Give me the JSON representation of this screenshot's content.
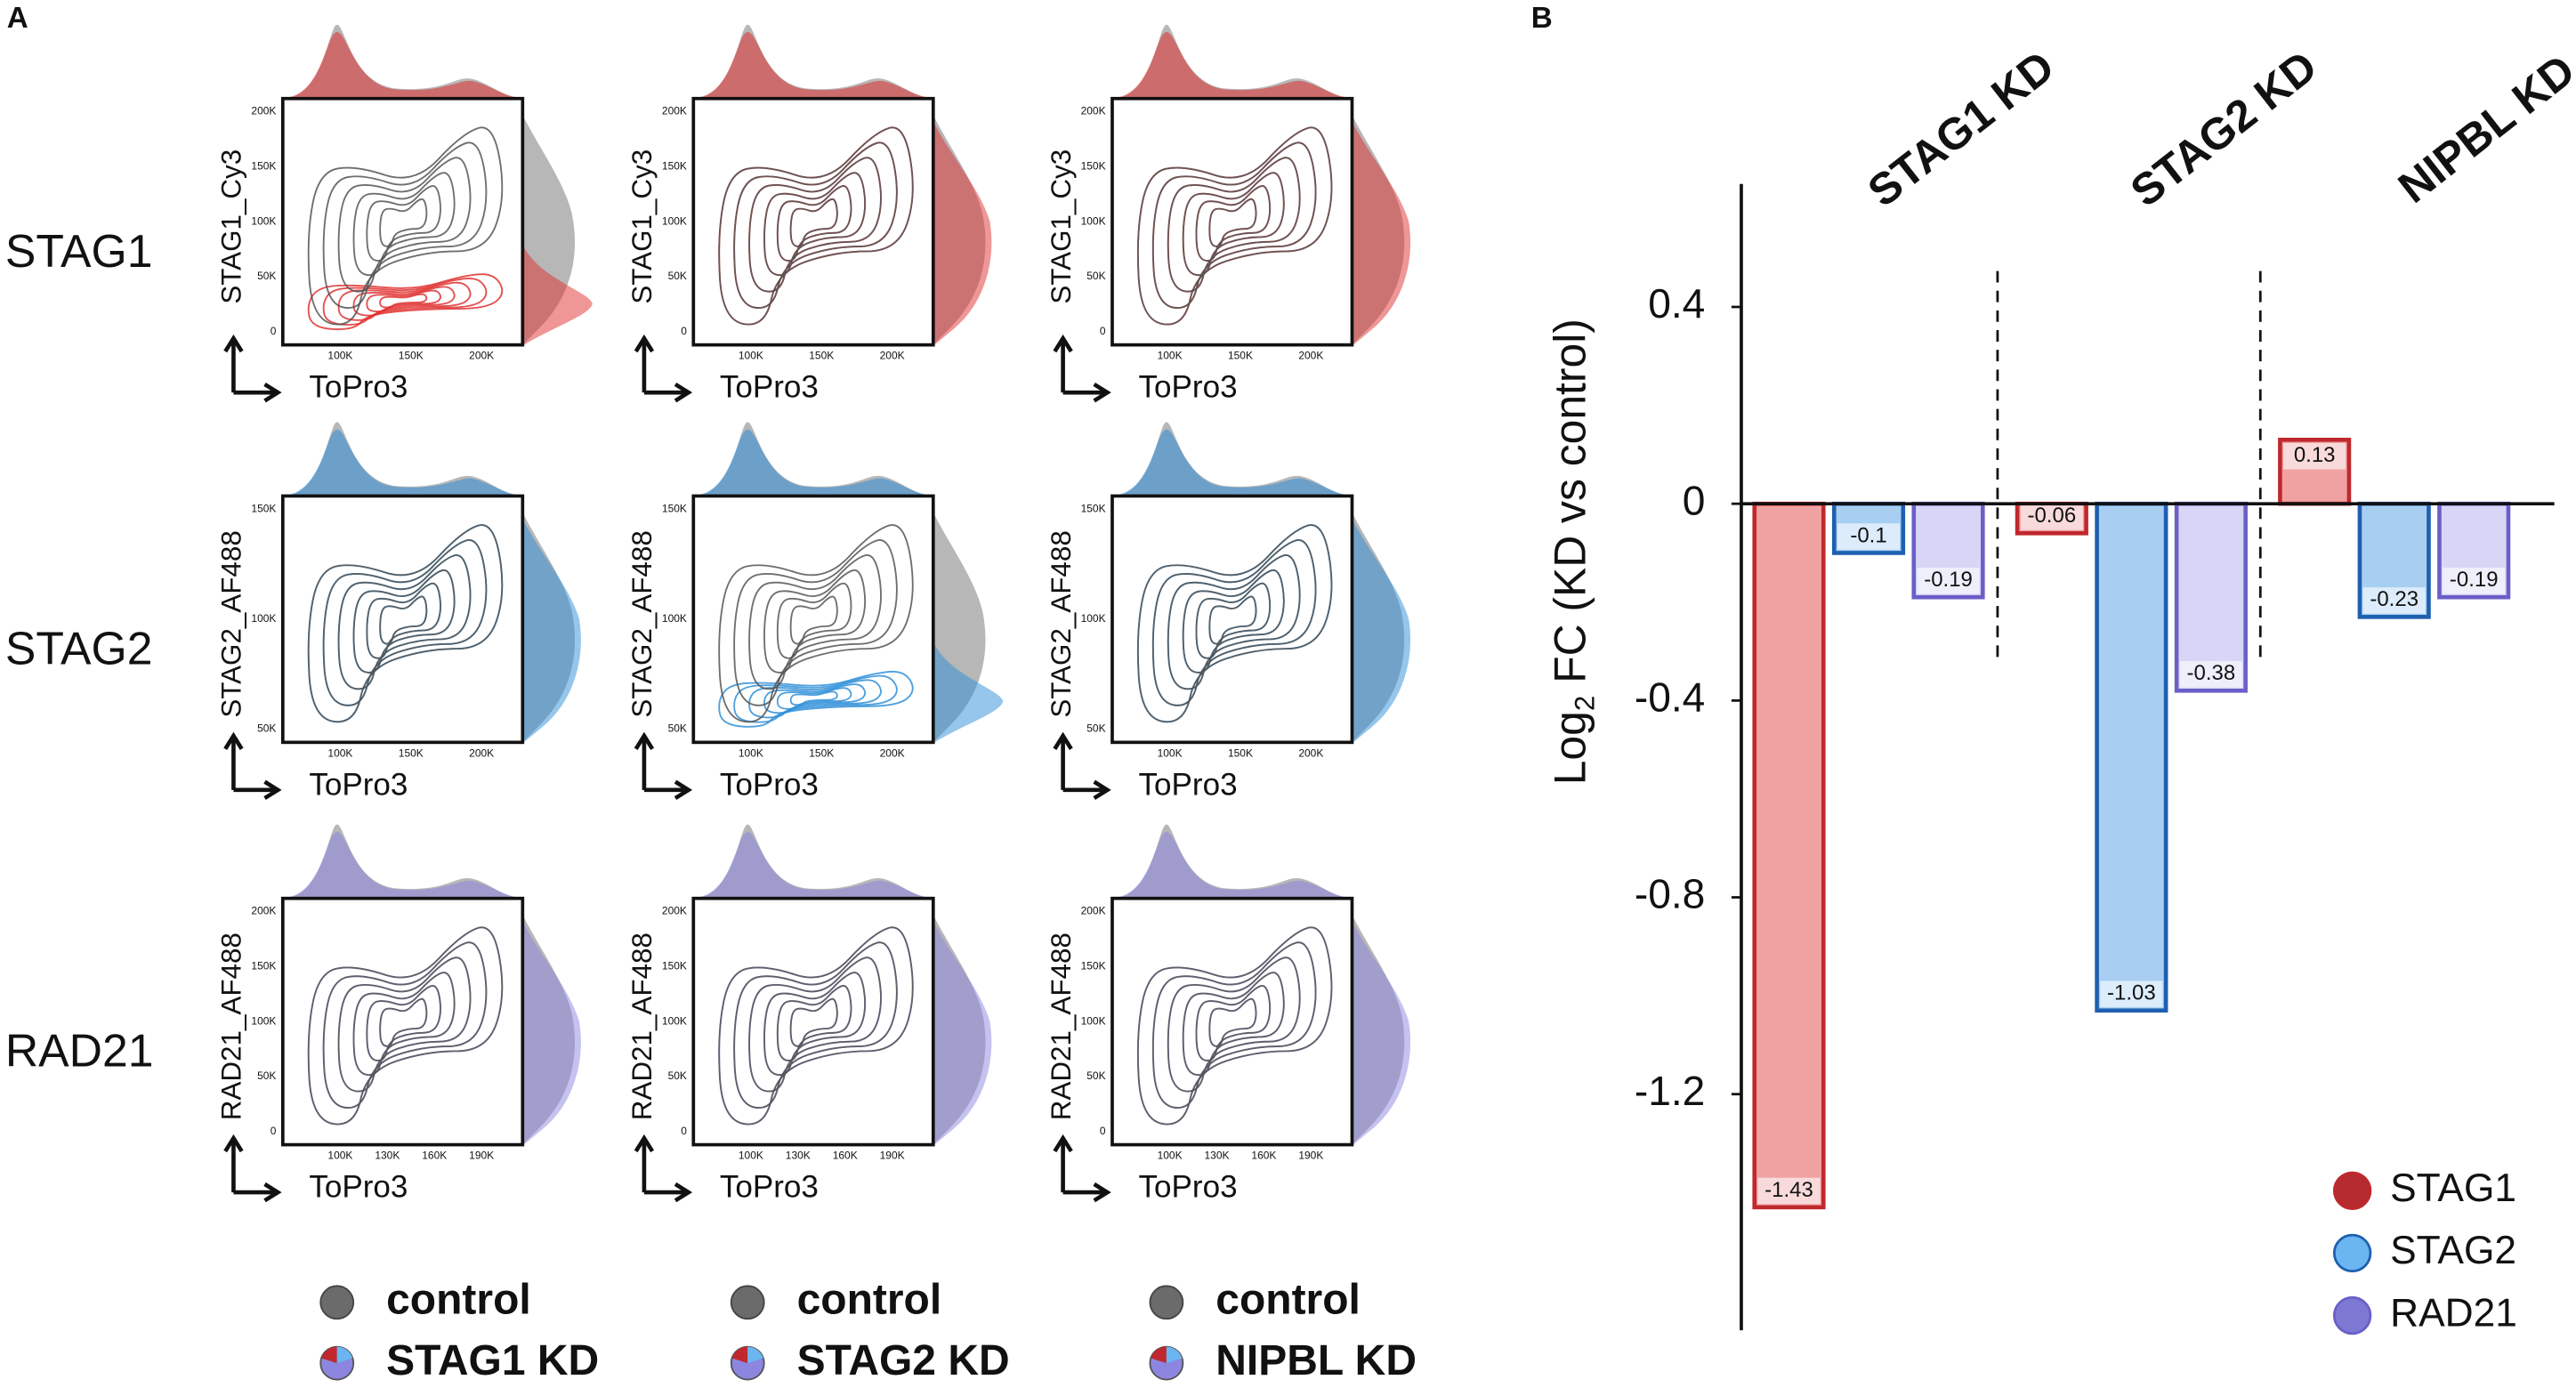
{
  "panel_a": {
    "label": "A",
    "xlabel": "ToPro3",
    "rows": [
      {
        "label": "STAG1",
        "ylabel": "STAG1_Cy3",
        "color": "#e03030",
        "yticks": [
          "0",
          "50K",
          "100K",
          "150K",
          "200K"
        ],
        "xticks": [
          "100K",
          "150K",
          "200K"
        ]
      },
      {
        "label": "STAG2",
        "ylabel": "STAG2_AF488",
        "color": "#2f8fd8",
        "yticks": [
          "50K",
          "100K",
          "150K"
        ],
        "xticks": [
          "100K",
          "150K",
          "200K"
        ]
      },
      {
        "label": "RAD21",
        "ylabel": "RAD21_AF488",
        "color": "#8c86e0",
        "yticks": [
          "0",
          "50K",
          "100K",
          "150K",
          "200K"
        ],
        "xticks": [
          "100K",
          "130K",
          "160K",
          "190K"
        ]
      }
    ],
    "legend": [
      [
        "control",
        "STAG1 KD"
      ],
      [
        "control",
        "STAG2 KD"
      ],
      [
        "control",
        "NIPBL KD"
      ]
    ]
  },
  "chart_data": {
    "type": "bar",
    "panel_label": "B",
    "ylabel_parts": [
      "Log",
      "2",
      " FC (KD vs control)"
    ],
    "categories": [
      "STAG1 KD",
      "STAG2 KD",
      "NIPBL KD"
    ],
    "series": [
      {
        "name": "STAG1",
        "color": "#c0282d",
        "fill": "#f0a2a2",
        "marker_color": "#b52a2e",
        "values": [
          -1.43,
          -0.06,
          0.13
        ]
      },
      {
        "name": "STAG2",
        "color": "#1f5fb0",
        "fill": "#a8cff2",
        "marker_color": "#6bb6f0",
        "values": [
          -0.1,
          -1.03,
          -0.23
        ]
      },
      {
        "name": "RAD21",
        "color": "#6a5fc8",
        "fill": "#d8d6f6",
        "marker_color": "#7d78d2",
        "values": [
          -0.19,
          -0.38,
          -0.19
        ]
      }
    ],
    "ylim": [
      -1.68,
      0.65
    ],
    "yticks": [
      0.4,
      0,
      -0.4,
      -0.8,
      -1.2
    ],
    "legend_position": "bottom-right"
  }
}
